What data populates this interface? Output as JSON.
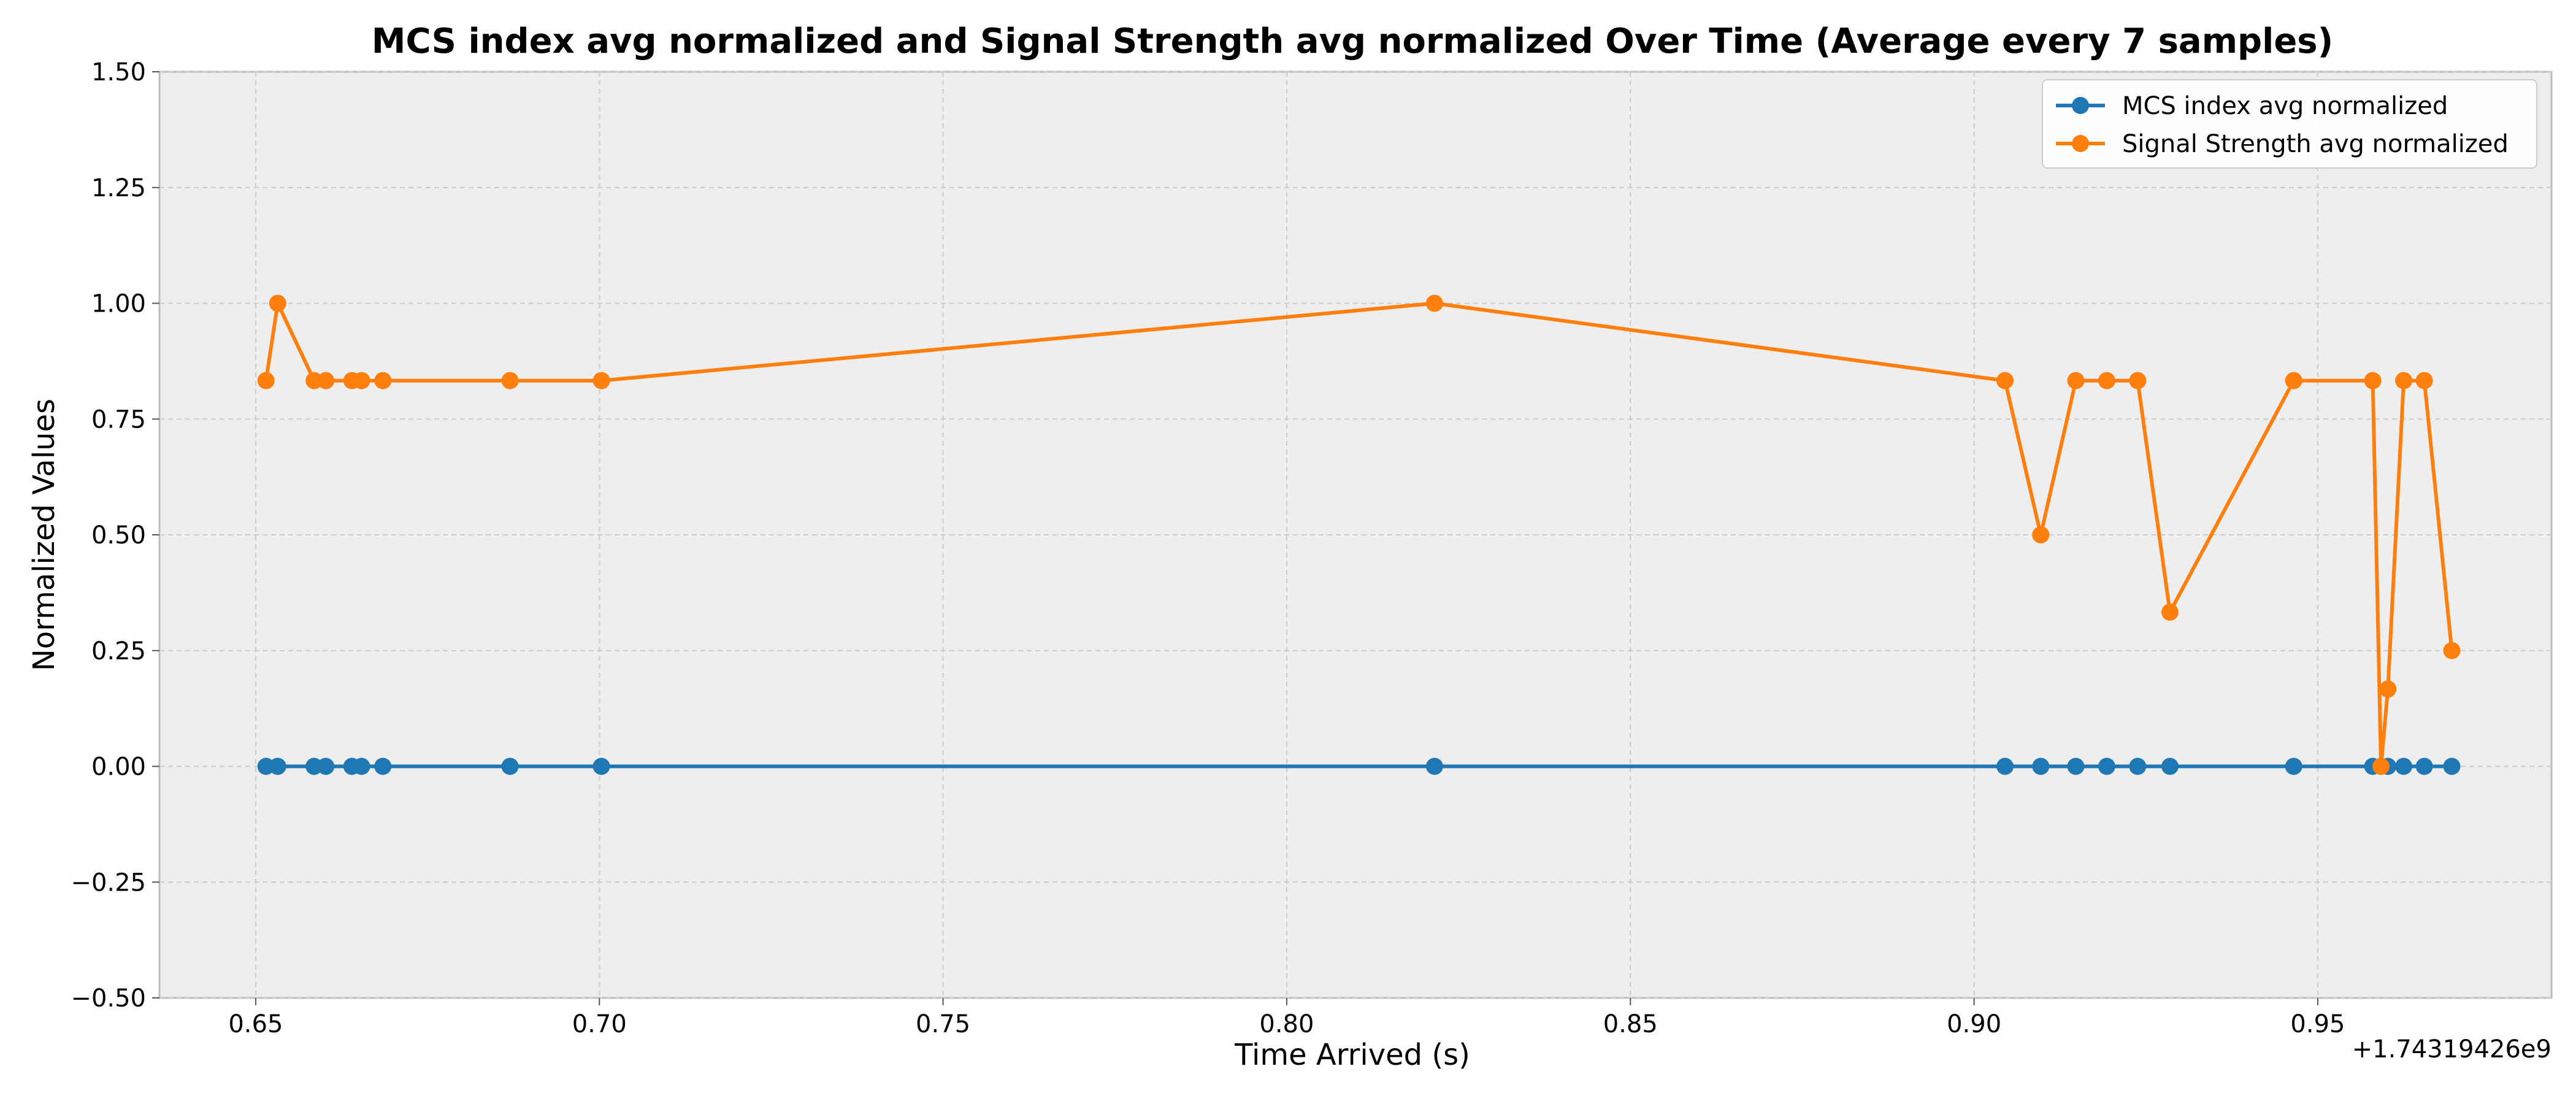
{
  "chart_data": {
    "type": "line",
    "title": "MCS index avg normalized and Signal Strength avg normalized Over Time (Average every 7 samples)",
    "xlabel": "Time Arrived (s)",
    "ylabel": "Normalized Values",
    "x_offset_label": "+1.74319426e9",
    "xlim": [
      0.636,
      0.984
    ],
    "ylim": [
      -0.5,
      1.5
    ],
    "xticks": [
      0.65,
      0.7,
      0.75,
      0.8,
      0.85,
      0.9,
      0.95
    ],
    "xtick_labels": [
      "0.65",
      "0.70",
      "0.75",
      "0.80",
      "0.85",
      "0.90",
      "0.95"
    ],
    "yticks": [
      -0.5,
      -0.25,
      0.0,
      0.25,
      0.5,
      0.75,
      1.0,
      1.25,
      1.5
    ],
    "ytick_labels": [
      "−0.50",
      "−0.25",
      "0.00",
      "0.25",
      "0.50",
      "0.75",
      "1.00",
      "1.25",
      "1.50"
    ],
    "grid": true,
    "legend_position": "top-right",
    "x": [
      0.6515,
      0.6532,
      0.6585,
      0.6602,
      0.664,
      0.6654,
      0.6685,
      0.687,
      0.7003,
      0.8215,
      0.9045,
      0.9097,
      0.9148,
      0.9193,
      0.9238,
      0.9285,
      0.9465,
      0.958,
      0.9592,
      0.9602,
      0.9625,
      0.9655,
      0.9695
    ],
    "series": [
      {
        "name": "MCS index avg normalized",
        "color": "#1f77b4",
        "values": [
          0,
          0,
          0,
          0,
          0,
          0,
          0,
          0,
          0,
          0,
          0,
          0,
          0,
          0,
          0,
          0,
          0,
          0,
          0,
          0,
          0,
          0,
          0
        ]
      },
      {
        "name": "Signal Strength avg normalized",
        "color": "#ff7f0e",
        "values": [
          0.833,
          1.0,
          0.833,
          0.833,
          0.833,
          0.833,
          0.833,
          0.833,
          0.833,
          1.0,
          0.833,
          0.5,
          0.833,
          0.833,
          0.833,
          0.333,
          0.833,
          0.833,
          0.0,
          0.167,
          0.833,
          0.833,
          0.25
        ]
      }
    ]
  }
}
